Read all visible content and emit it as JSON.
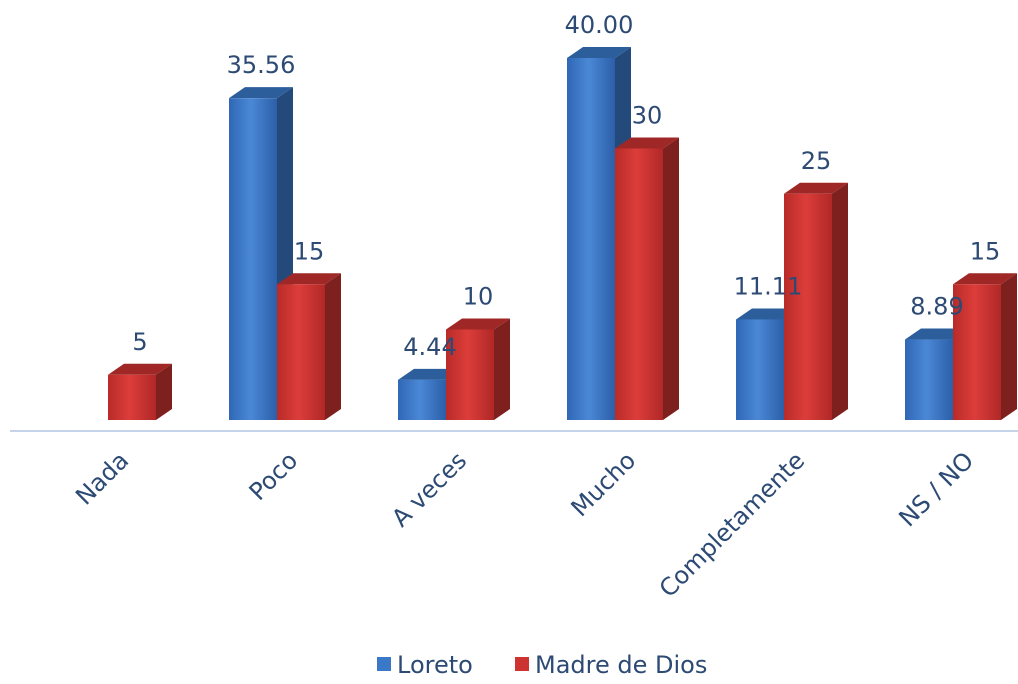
{
  "chart_data": {
    "type": "bar",
    "categories": [
      "Nada",
      "Poco",
      "A veces",
      "Mucho",
      "Completamente",
      "NS / NO"
    ],
    "series": [
      {
        "name": "Loreto",
        "color": "#3a78c8",
        "values": [
          null,
          35.56,
          4.44,
          40.0,
          11.11,
          8.89
        ],
        "labels": [
          "",
          "35.56",
          "4.44",
          "40.00",
          "11.11",
          "8.89"
        ]
      },
      {
        "name": "Madre de Dios",
        "color": "#cc3331",
        "values": [
          5,
          15,
          10,
          30,
          25,
          15
        ],
        "labels": [
          "5",
          "15",
          "10",
          "30",
          "25",
          "15"
        ]
      }
    ],
    "ylim": [
      0,
      40
    ],
    "grid": false,
    "legend": "bottom"
  }
}
